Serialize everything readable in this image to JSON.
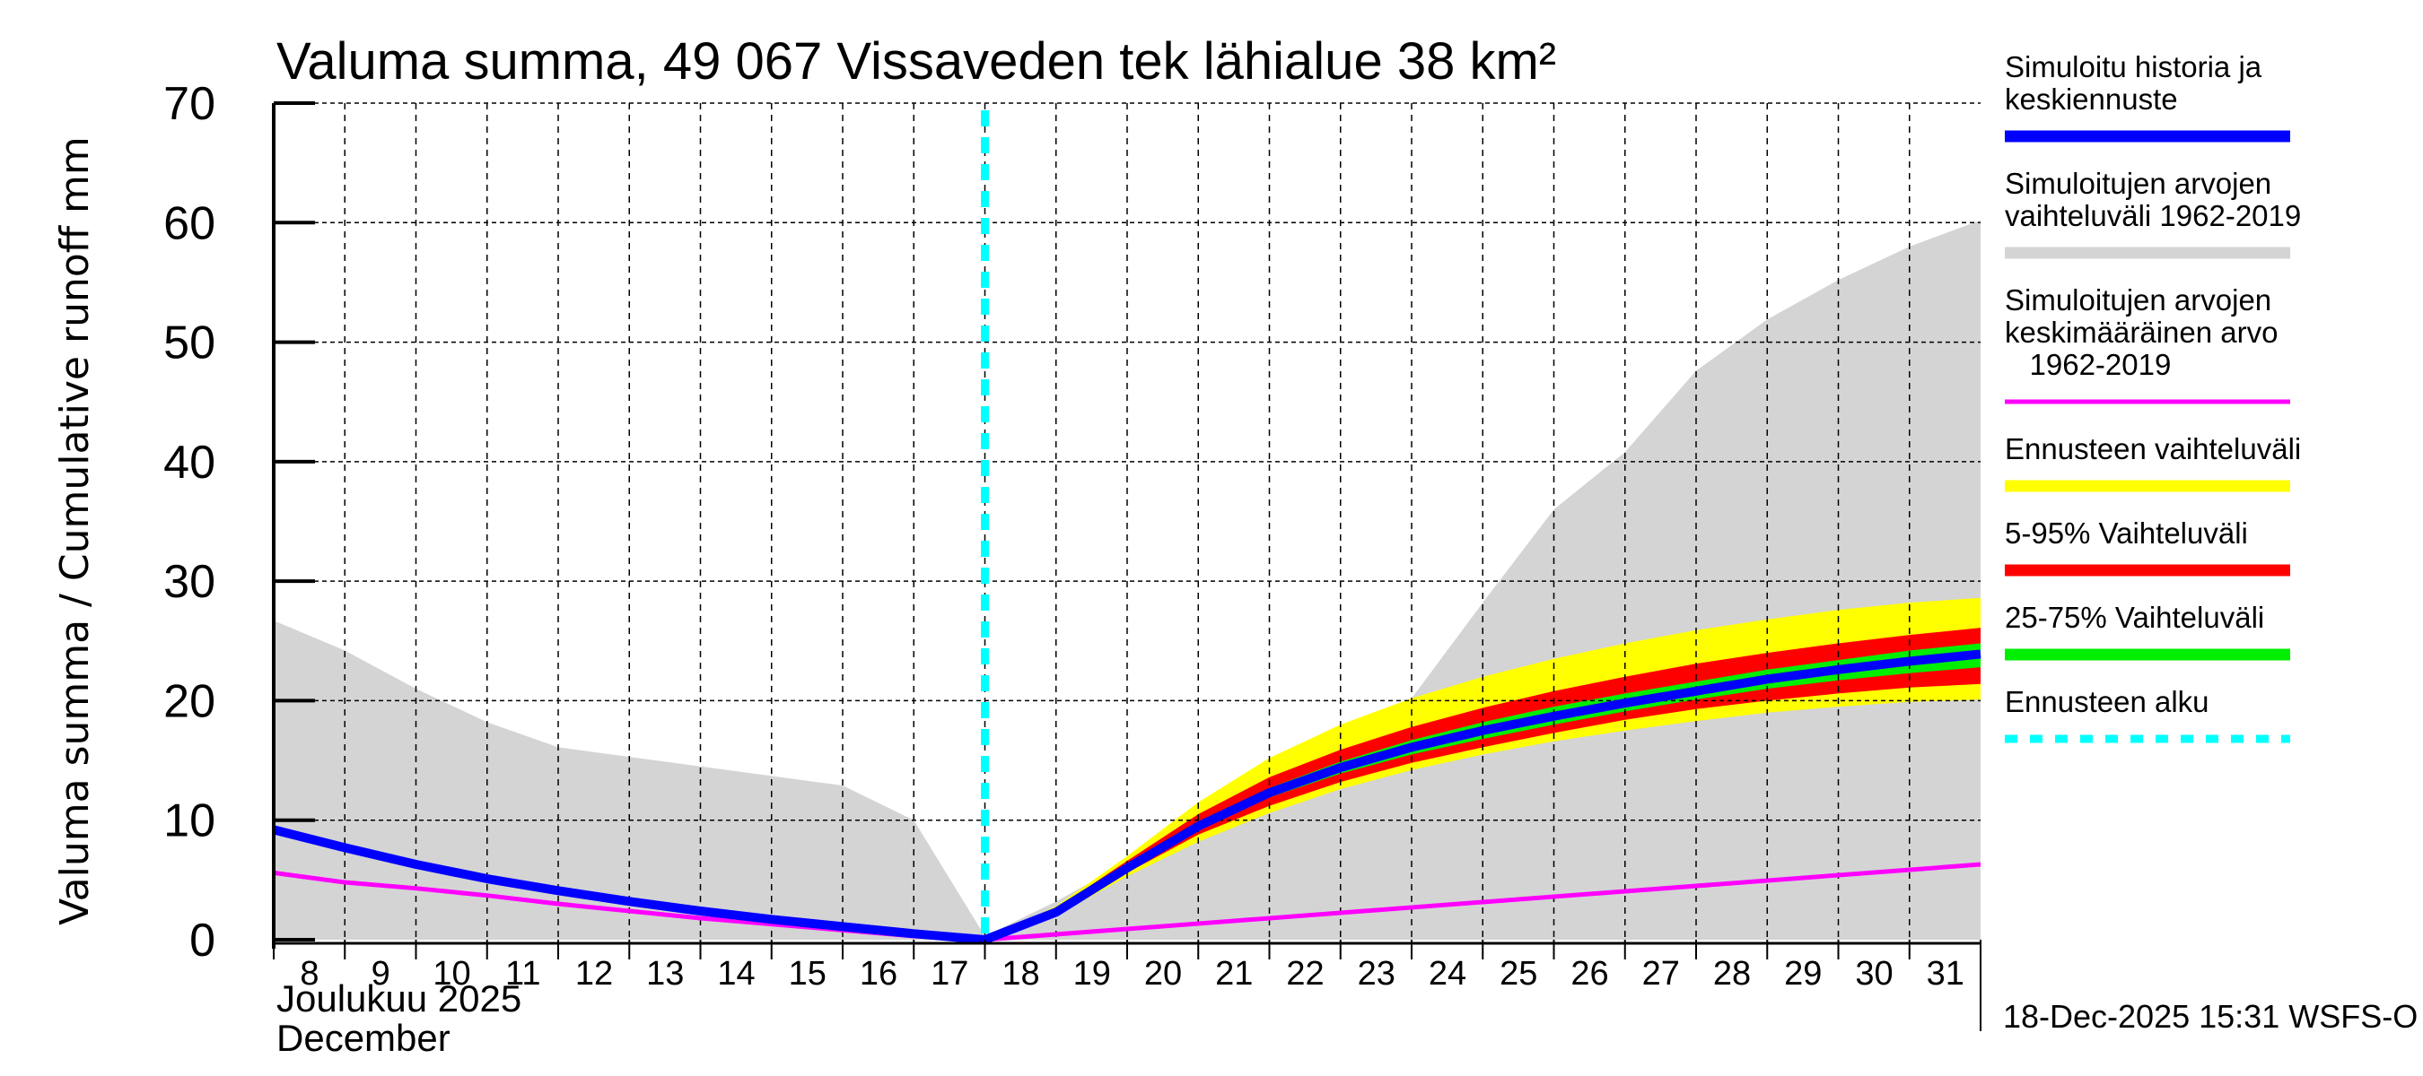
{
  "chart_data": {
    "type": "area",
    "title": "Valuma summa, 49 067 Vissaveden tek lähialue 38 km²",
    "ylabel": "Valuma summa / Cumulative runoff    mm",
    "xlabel_line1": "Joulukuu  2025",
    "xlabel_line2": "December",
    "timestamp": "18-Dec-2025 15:31 WSFS-O",
    "ylim": [
      0,
      70
    ],
    "xlim": [
      8,
      32
    ],
    "yticks": [
      0,
      10,
      20,
      30,
      40,
      50,
      60,
      70
    ],
    "xticks": [
      8,
      9,
      10,
      11,
      12,
      13,
      14,
      15,
      16,
      17,
      18,
      19,
      20,
      21,
      22,
      23,
      24,
      25,
      26,
      27,
      28,
      29,
      30,
      31
    ],
    "grid": true,
    "legend_position": "right",
    "forecast_start_day": 18,
    "colors": {
      "history": "#0000ff",
      "sim_range": "#d4d4d4",
      "sim_mean": "#ff00ff",
      "forecast_range": "#ffff00",
      "p5_95": "#ff0000",
      "p25_75": "#00ee00",
      "forecast_start": "#00ffff"
    },
    "legend": [
      {
        "key": "history",
        "label": [
          "Simuloitu historia ja",
          "keskiennuste"
        ]
      },
      {
        "key": "sim_range",
        "label": [
          "Simuloitujen arvojen",
          "vaihteluväli 1962-2019"
        ]
      },
      {
        "key": "sim_mean",
        "label": [
          "Simuloitujen arvojen",
          "keskimääräinen arvo",
          "   1962-2019"
        ]
      },
      {
        "key": "forecast_range",
        "label": [
          "Ennusteen vaihteluväli"
        ]
      },
      {
        "key": "p5_95",
        "label": [
          "5-95% Vaihteluväli"
        ]
      },
      {
        "key": "p25_75",
        "label": [
          "25-75% Vaihteluväli"
        ]
      },
      {
        "key": "forecast_start",
        "label": [
          "Ennusteen alku"
        ]
      }
    ],
    "series": {
      "sim_range": {
        "x": [
          8,
          9,
          10,
          11,
          12,
          13,
          14,
          15,
          16,
          17,
          18,
          19,
          20,
          21,
          22,
          23,
          24,
          25,
          26,
          27,
          28,
          29,
          30,
          31,
          32
        ],
        "upper": [
          26.7,
          24.2,
          21.0,
          18.2,
          16.1,
          15.3,
          14.5,
          13.7,
          12.9,
          10.0,
          0.3,
          3.2,
          6.5,
          9.0,
          11.0,
          14.5,
          20.2,
          28.2,
          36.0,
          40.8,
          47.6,
          51.9,
          55.2,
          58.0,
          60.2
        ],
        "lower": [
          0,
          0,
          0,
          0,
          0,
          0,
          0,
          0,
          0,
          0,
          0,
          0,
          0,
          0,
          0,
          0,
          0,
          0,
          0,
          0,
          0,
          0,
          0,
          0,
          0
        ]
      },
      "sim_mean": {
        "x": [
          8,
          9,
          10,
          11,
          12,
          13,
          14,
          15,
          16,
          17,
          18,
          32
        ],
        "y": [
          5.6,
          4.8,
          4.3,
          3.7,
          3.0,
          2.4,
          1.8,
          1.3,
          0.8,
          0.3,
          0.0,
          6.3
        ]
      },
      "forecast_range": {
        "x": [
          18,
          19,
          20,
          21,
          22,
          23,
          24,
          25,
          26,
          27,
          28,
          29,
          30,
          31,
          32
        ],
        "upper": [
          0,
          2.8,
          7.0,
          11.5,
          15.2,
          18.0,
          20.2,
          22.0,
          23.5,
          24.8,
          25.9,
          26.8,
          27.6,
          28.2,
          28.6
        ],
        "lower": [
          0,
          2.0,
          5.3,
          8.2,
          10.6,
          12.6,
          14.2,
          15.5,
          16.6,
          17.5,
          18.3,
          19.0,
          19.5,
          19.9,
          20.1
        ]
      },
      "p5_95": {
        "x": [
          18,
          19,
          20,
          21,
          22,
          23,
          24,
          25,
          26,
          27,
          28,
          29,
          30,
          31,
          32
        ],
        "upper": [
          0,
          2.6,
          6.6,
          10.5,
          13.6,
          15.9,
          17.8,
          19.4,
          20.8,
          22.0,
          23.1,
          24.0,
          24.8,
          25.5,
          26.1
        ],
        "lower": [
          0,
          2.1,
          5.6,
          8.8,
          11.2,
          13.2,
          14.8,
          16.1,
          17.3,
          18.4,
          19.3,
          20.0,
          20.6,
          21.1,
          21.4
        ]
      },
      "p25_75": {
        "x": [
          18,
          19,
          20,
          21,
          22,
          23,
          24,
          25,
          26,
          27,
          28,
          29,
          30,
          31,
          32
        ],
        "upper": [
          0,
          2.4,
          6.2,
          9.8,
          12.7,
          14.9,
          16.7,
          18.2,
          19.5,
          20.6,
          21.6,
          22.6,
          23.4,
          24.2,
          24.8
        ],
        "lower": [
          0,
          2.2,
          5.8,
          9.2,
          11.9,
          13.9,
          15.5,
          16.8,
          18.0,
          19.1,
          20.1,
          21.0,
          21.7,
          22.3,
          22.8
        ]
      },
      "history": {
        "x": [
          8,
          9,
          10,
          11,
          12,
          13,
          14,
          15,
          16,
          17,
          18,
          19,
          20,
          21,
          22,
          23,
          24,
          25,
          26,
          27,
          28,
          29,
          30,
          31,
          32
        ],
        "y": [
          9.2,
          7.7,
          6.3,
          5.1,
          4.1,
          3.2,
          2.4,
          1.7,
          1.1,
          0.5,
          0.0,
          2.3,
          6.0,
          9.5,
          12.3,
          14.4,
          16.1,
          17.5,
          18.7,
          19.8,
          20.8,
          21.8,
          22.6,
          23.3,
          23.9
        ]
      }
    }
  }
}
